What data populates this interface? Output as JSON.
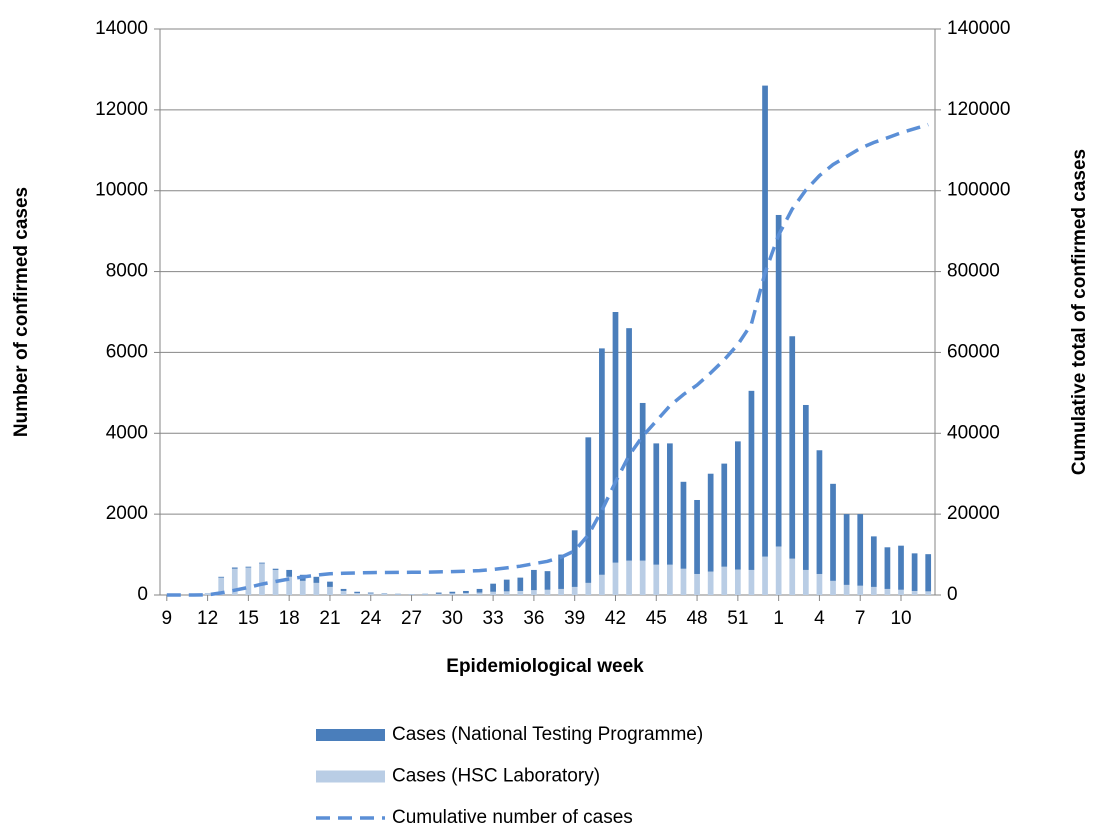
{
  "chart_data": {
    "type": "bar",
    "x_label": "Epidemiological week",
    "y_label": "Number of confirmed cases",
    "y2_label": "Cumulative total of confirmed cases",
    "categories": [
      "9",
      null,
      null,
      "12",
      null,
      null,
      "15",
      null,
      null,
      "18",
      null,
      null,
      "21",
      null,
      null,
      "24",
      null,
      null,
      "27",
      null,
      null,
      "30",
      null,
      null,
      "33",
      null,
      null,
      "36",
      null,
      null,
      "39",
      null,
      null,
      "42",
      null,
      null,
      "45",
      null,
      null,
      "48",
      null,
      null,
      "51",
      null,
      null,
      "1",
      null,
      null,
      "4",
      null,
      null,
      "7",
      null,
      null,
      "10",
      null,
      null
    ],
    "stacked": true,
    "series": [
      {
        "name": "Cases (National Testing Programme)",
        "color": "#4a7ebb",
        "values": [
          0,
          0,
          0,
          0,
          20,
          30,
          20,
          20,
          30,
          170,
          150,
          150,
          130,
          50,
          30,
          20,
          10,
          10,
          5,
          10,
          30,
          40,
          50,
          90,
          200,
          290,
          330,
          500,
          460,
          850,
          1400,
          3600,
          5600,
          6200,
          5750,
          3900,
          3000,
          3000,
          2150,
          1830,
          2420,
          2550,
          3170,
          4430,
          11650,
          8200,
          5500,
          4080,
          3060,
          2400,
          1750,
          1770,
          1250,
          1030,
          1090,
          930,
          920
        ]
      },
      {
        "name": "Cases (HSC Laboratory)",
        "color": "#b9cde5",
        "values": [
          0,
          0,
          10,
          50,
          430,
          650,
          680,
          780,
          620,
          450,
          350,
          300,
          200,
          100,
          50,
          40,
          30,
          20,
          15,
          20,
          30,
          40,
          50,
          60,
          80,
          90,
          100,
          120,
          130,
          150,
          200,
          300,
          500,
          800,
          850,
          850,
          750,
          750,
          650,
          520,
          580,
          700,
          630,
          620,
          950,
          1200,
          900,
          620,
          520,
          350,
          250,
          230,
          200,
          150,
          130,
          100,
          90
        ]
      },
      {
        "name": "Cumulative number of cases",
        "color": "#5b8fd6",
        "type": "line",
        "line_style": "dashed",
        "axis": "y2",
        "values": [
          0,
          0,
          10,
          60,
          510,
          1190,
          1890,
          2690,
          3340,
          3960,
          4460,
          4910,
          5240,
          5390,
          5470,
          5530,
          5570,
          5600,
          5620,
          5650,
          5710,
          5790,
          5890,
          6040,
          6320,
          6700,
          7130,
          7750,
          8340,
          9340,
          10940,
          14840,
          20940,
          27940,
          34540,
          39290,
          43040,
          46790,
          49590,
          51940,
          54940,
          58190,
          61990,
          67040,
          79640,
          89040,
          95440,
          100140,
          103720,
          106470,
          108470,
          110470,
          111920,
          113100,
          114320,
          115350,
          116360
        ]
      }
    ],
    "ylim": [
      0,
      14000
    ],
    "yticks": [
      0,
      2000,
      4000,
      6000,
      8000,
      10000,
      12000,
      14000
    ],
    "y2lim": [
      0,
      140000
    ],
    "y2ticks": [
      0,
      20000,
      40000,
      60000,
      80000,
      100000,
      120000,
      140000
    ],
    "grid": true,
    "legend": "bottom"
  }
}
